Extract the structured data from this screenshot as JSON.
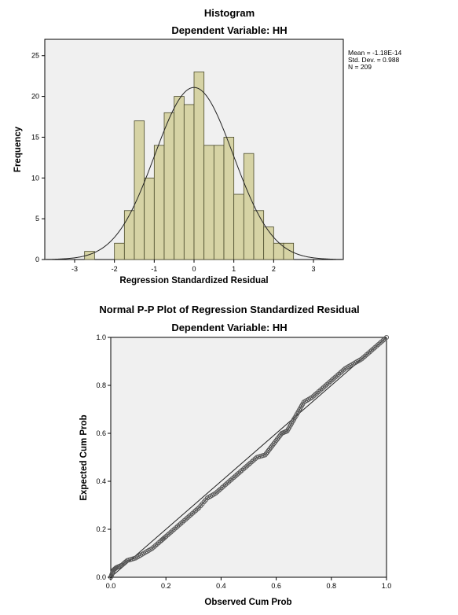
{
  "chart_data": [
    {
      "type": "bar",
      "title": "Histogram",
      "subtitle": "Dependent Variable: HH",
      "xlabel": "Regression Standardized Residual",
      "ylabel": "Frequency",
      "xlim": [
        -3.75,
        3.75
      ],
      "ylim": [
        0,
        27
      ],
      "xticks": [
        "-3",
        "-2",
        "-1",
        "0",
        "1",
        "2",
        "3"
      ],
      "yticks": [
        "0",
        "5",
        "10",
        "15",
        "20",
        "25"
      ],
      "bin_width": 0.25,
      "bins": [
        {
          "x": -2.625,
          "y": 1
        },
        {
          "x": -1.875,
          "y": 2
        },
        {
          "x": -1.625,
          "y": 6
        },
        {
          "x": -1.375,
          "y": 17
        },
        {
          "x": -1.125,
          "y": 10
        },
        {
          "x": -0.875,
          "y": 14
        },
        {
          "x": -0.625,
          "y": 18
        },
        {
          "x": -0.375,
          "y": 20
        },
        {
          "x": -0.125,
          "y": 19
        },
        {
          "x": 0.125,
          "y": 23
        },
        {
          "x": 0.375,
          "y": 14
        },
        {
          "x": 0.625,
          "y": 14
        },
        {
          "x": 0.875,
          "y": 15
        },
        {
          "x": 1.125,
          "y": 8
        },
        {
          "x": 1.375,
          "y": 13
        },
        {
          "x": 1.625,
          "y": 6
        },
        {
          "x": 1.875,
          "y": 4
        },
        {
          "x": 2.125,
          "y": 2
        },
        {
          "x": 2.375,
          "y": 2
        }
      ],
      "normal_curve": {
        "mean": 0,
        "sd": 0.988,
        "n": 209
      },
      "stats": {
        "mean": "Mean = -1.18E-14",
        "sd": "Std. Dev. = 0.988",
        "n": "N = 209"
      },
      "colors": {
        "bar_fill": "#d6d3a5",
        "bar_stroke": "#4a4a2a",
        "plot_bg": "#f0f0f0"
      }
    },
    {
      "type": "scatter",
      "title": "Normal P-P Plot of Regression Standardized Residual",
      "subtitle": "Dependent Variable: HH",
      "xlabel": "Observed Cum Prob",
      "ylabel": "Expected Cum Prob",
      "xlim": [
        0,
        1
      ],
      "ylim": [
        0,
        1
      ],
      "xticks": [
        "0.0",
        "0.2",
        "0.4",
        "0.6",
        "0.8",
        "1.0"
      ],
      "yticks": [
        "0.0",
        "0.2",
        "0.4",
        "0.6",
        "0.8",
        "1.0"
      ],
      "reference_line": [
        [
          0,
          0
        ],
        [
          1,
          1
        ]
      ],
      "points": [
        [
          0.0,
          0.0
        ],
        [
          0.01,
          0.03
        ],
        [
          0.02,
          0.04
        ],
        [
          0.04,
          0.05
        ],
        [
          0.06,
          0.07
        ],
        [
          0.09,
          0.08
        ],
        [
          0.12,
          0.1
        ],
        [
          0.15,
          0.12
        ],
        [
          0.18,
          0.15
        ],
        [
          0.2,
          0.17
        ],
        [
          0.23,
          0.2
        ],
        [
          0.26,
          0.23
        ],
        [
          0.29,
          0.26
        ],
        [
          0.32,
          0.29
        ],
        [
          0.35,
          0.33
        ],
        [
          0.38,
          0.35
        ],
        [
          0.41,
          0.38
        ],
        [
          0.44,
          0.41
        ],
        [
          0.47,
          0.44
        ],
        [
          0.5,
          0.47
        ],
        [
          0.53,
          0.5
        ],
        [
          0.56,
          0.51
        ],
        [
          0.58,
          0.54
        ],
        [
          0.6,
          0.57
        ],
        [
          0.62,
          0.6
        ],
        [
          0.64,
          0.61
        ],
        [
          0.66,
          0.65
        ],
        [
          0.68,
          0.69
        ],
        [
          0.7,
          0.73
        ],
        [
          0.73,
          0.75
        ],
        [
          0.76,
          0.78
        ],
        [
          0.79,
          0.81
        ],
        [
          0.82,
          0.84
        ],
        [
          0.85,
          0.87
        ],
        [
          0.88,
          0.89
        ],
        [
          0.91,
          0.91
        ],
        [
          0.94,
          0.94
        ],
        [
          0.97,
          0.97
        ],
        [
          1.0,
          1.0
        ]
      ],
      "colors": {
        "plot_bg": "#f0f0f0",
        "marker": "#555555"
      }
    }
  ]
}
